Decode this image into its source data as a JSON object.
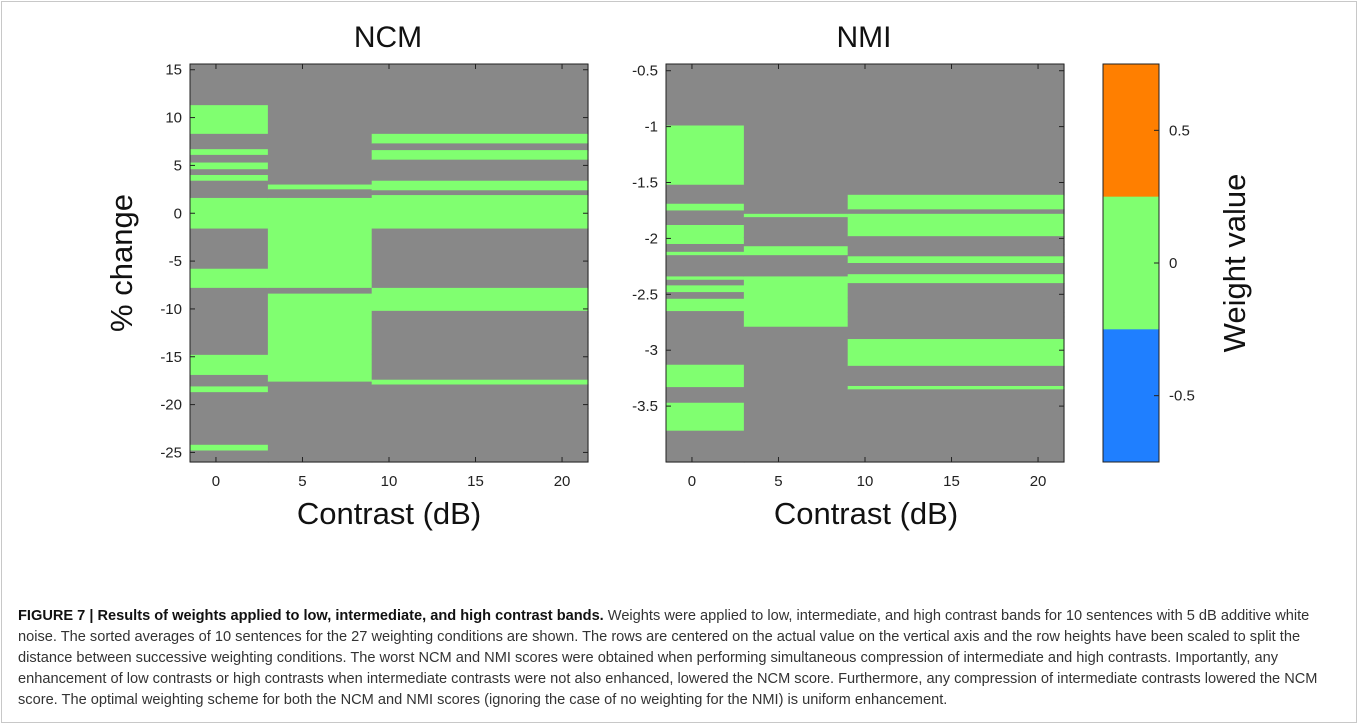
{
  "chart_data": [
    {
      "type": "heatmap",
      "title": "NCM",
      "xlabel": "Contrast (dB)",
      "ylabel": "% change",
      "xlim": [
        -1.5,
        21.5
      ],
      "ylim": [
        -26,
        15.6
      ],
      "xticks": [
        0,
        5,
        10,
        15,
        20
      ],
      "yticks": [
        15,
        10,
        5,
        0,
        -5,
        -10,
        -15,
        -20,
        -25
      ],
      "columns": [
        {
          "x": [
            -1.5,
            3
          ],
          "bands": [
            [
              15.6,
              11.3,
              1
            ],
            [
              11.3,
              8.3,
              0
            ],
            [
              8.3,
              7.3,
              1
            ],
            [
              7.3,
              6.7,
              -1
            ],
            [
              6.7,
              6.1,
              0
            ],
            [
              6.1,
              5.3,
              1
            ],
            [
              5.3,
              4.6,
              0
            ],
            [
              4.6,
              4.0,
              1
            ],
            [
              4.0,
              3.4,
              0
            ],
            [
              3.4,
              1.6,
              -1
            ],
            [
              1.6,
              -1.6,
              0
            ],
            [
              -1.6,
              -5.8,
              -1
            ],
            [
              -5.8,
              -7.8,
              0
            ],
            [
              -7.8,
              -8.4,
              -1
            ],
            [
              -8.4,
              -14.8,
              1
            ],
            [
              -14.8,
              -16.9,
              0
            ],
            [
              -16.9,
              -17.5,
              -1
            ],
            [
              -17.5,
              -18.1,
              1
            ],
            [
              -18.1,
              -18.7,
              0
            ],
            [
              -18.7,
              -20.5,
              -1
            ],
            [
              -20.5,
              -23.5,
              1
            ],
            [
              -23.5,
              -24.2,
              -1
            ],
            [
              -24.2,
              -24.8,
              0
            ],
            [
              -24.8,
              -25.4,
              1
            ],
            [
              -25.4,
              -26,
              -1
            ]
          ]
        },
        {
          "x": [
            3,
            9
          ],
          "bands": [
            [
              15.6,
              3.0,
              1
            ],
            [
              3.0,
              2.5,
              0
            ],
            [
              2.5,
              1.6,
              1
            ],
            [
              1.6,
              -7.8,
              0
            ],
            [
              -7.8,
              -8.4,
              -1
            ],
            [
              -8.4,
              -17.6,
              0
            ],
            [
              -17.6,
              -26,
              -1
            ]
          ]
        },
        {
          "x": [
            9,
            21.5
          ],
          "bands": [
            [
              15.6,
              8.3,
              1
            ],
            [
              8.3,
              7.3,
              0
            ],
            [
              7.3,
              6.6,
              1
            ],
            [
              6.6,
              5.6,
              0
            ],
            [
              5.6,
              3.4,
              -1
            ],
            [
              3.4,
              2.4,
              0
            ],
            [
              2.4,
              1.9,
              -1
            ],
            [
              1.9,
              -1.6,
              0
            ],
            [
              -1.6,
              -7.8,
              -1
            ],
            [
              -7.8,
              -10.2,
              0
            ],
            [
              -10.2,
              -12.4,
              1
            ],
            [
              -12.4,
              -14.7,
              -1
            ],
            [
              -14.7,
              -17.4,
              1
            ],
            [
              -17.4,
              -17.9,
              0
            ],
            [
              -17.9,
              -20.4,
              -1
            ],
            [
              -20.4,
              -24.7,
              1
            ],
            [
              -24.7,
              -26,
              -1
            ]
          ]
        }
      ]
    },
    {
      "type": "heatmap",
      "title": "NMI",
      "xlabel": "Contrast (dB)",
      "ylabel": "",
      "xlim": [
        -1.5,
        21.5
      ],
      "ylim": [
        -4.0,
        -0.44
      ],
      "xticks": [
        0,
        5,
        10,
        15,
        20
      ],
      "yticks": [
        -0.5,
        -1,
        -1.5,
        -2,
        -2.5,
        -3,
        -3.5
      ],
      "yticklabels": [
        "-0.5",
        "-1",
        "-1.5",
        "-2",
        "-2.5",
        "-3",
        "-3.5"
      ],
      "columns": [
        {
          "x": [
            -1.5,
            3
          ],
          "bands": [
            [
              -0.44,
              -0.99,
              1
            ],
            [
              -0.99,
              -1.52,
              0
            ],
            [
              -1.52,
              -1.69,
              -1
            ],
            [
              -1.69,
              -1.75,
              0
            ],
            [
              -1.75,
              -1.88,
              -1
            ],
            [
              -1.88,
              -2.05,
              0
            ],
            [
              -2.05,
              -2.12,
              1
            ],
            [
              -2.12,
              -2.15,
              0
            ],
            [
              -2.15,
              -2.29,
              -1
            ],
            [
              -2.29,
              -2.34,
              1
            ],
            [
              -2.34,
              -2.37,
              0
            ],
            [
              -2.37,
              -2.42,
              1
            ],
            [
              -2.42,
              -2.48,
              0
            ],
            [
              -2.48,
              -2.54,
              -1
            ],
            [
              -2.54,
              -2.65,
              0
            ],
            [
              -2.65,
              -2.67,
              1
            ],
            [
              -2.67,
              -2.73,
              -1
            ],
            [
              -2.73,
              -2.84,
              1
            ],
            [
              -2.84,
              -3.13,
              -1
            ],
            [
              -3.13,
              -3.33,
              0
            ],
            [
              -3.33,
              -3.35,
              1
            ],
            [
              -3.35,
              -3.47,
              -1
            ],
            [
              -3.47,
              -3.72,
              0
            ],
            [
              -3.72,
              -4.0,
              1
            ]
          ]
        },
        {
          "x": [
            3,
            9
          ],
          "bands": [
            [
              -0.44,
              -1.69,
              1
            ],
            [
              -1.69,
              -1.78,
              1
            ],
            [
              -1.78,
              -1.81,
              0
            ],
            [
              -1.81,
              -1.86,
              1
            ],
            [
              -1.86,
              -1.99,
              -1
            ],
            [
              -1.99,
              -2.07,
              1
            ],
            [
              -2.07,
              -2.15,
              0
            ],
            [
              -2.15,
              -2.34,
              1
            ],
            [
              -2.34,
              -2.79,
              0
            ],
            [
              -2.79,
              -4.0,
              -1
            ]
          ]
        },
        {
          "x": [
            9,
            21.5
          ],
          "bands": [
            [
              -0.44,
              -1.61,
              1
            ],
            [
              -1.61,
              -1.74,
              0
            ],
            [
              -1.74,
              -1.78,
              -1
            ],
            [
              -1.78,
              -1.98,
              0
            ],
            [
              -1.98,
              -2.05,
              -1
            ],
            [
              -2.05,
              -2.1,
              1
            ],
            [
              -2.1,
              -2.16,
              -1
            ],
            [
              -2.16,
              -2.22,
              0
            ],
            [
              -2.22,
              -2.32,
              -1
            ],
            [
              -2.32,
              -2.4,
              0
            ],
            [
              -2.4,
              -2.53,
              -1
            ],
            [
              -2.53,
              -2.66,
              1
            ],
            [
              -2.66,
              -2.7,
              -1
            ],
            [
              -2.7,
              -2.9,
              1
            ],
            [
              -2.9,
              -3.14,
              0
            ],
            [
              -3.14,
              -3.32,
              1
            ],
            [
              -3.32,
              -3.35,
              0
            ],
            [
              -3.35,
              -3.48,
              1
            ],
            [
              -3.48,
              -4.0,
              -1
            ]
          ]
        }
      ]
    },
    {
      "type": "colorbar",
      "label": "Weight value",
      "ticks": [
        0.5,
        0,
        -0.5
      ],
      "ticklabels": [
        "0.5",
        "0",
        "-0.5"
      ],
      "range": [
        -0.75,
        0.75
      ],
      "levels": [
        {
          "value": 0.5,
          "color": "#ff7f00"
        },
        {
          "value": 0,
          "color": "#80ff70"
        },
        {
          "value": -0.5,
          "color": "#1f7fff"
        }
      ]
    }
  ],
  "caption": {
    "label": "FIGURE 7 | Results of weights applied to low, intermediate, and high contrast bands.",
    "text": " Weights were applied to low, intermediate, and high contrast bands for 10 sentences with 5 dB additive white noise. The sorted averages of 10 sentences for the 27 weighting conditions are shown. The rows are centered on the actual value on the vertical axis and the row heights have been scaled to split the distance between successive weighting conditions. The worst NCM and NMI scores were obtained when performing simultaneous compression of intermediate and high contrasts. Importantly, any enhancement of low contrasts or high contrasts when intermediate contrasts were not also enhanced, lowered the NCM score. Furthermore, any compression of intermediate contrasts lowered the NCM score. The optimal weighting scheme for both the NCM and NMI scores (ignoring the case of no weighting for the NMI) is uniform enhancement."
  }
}
